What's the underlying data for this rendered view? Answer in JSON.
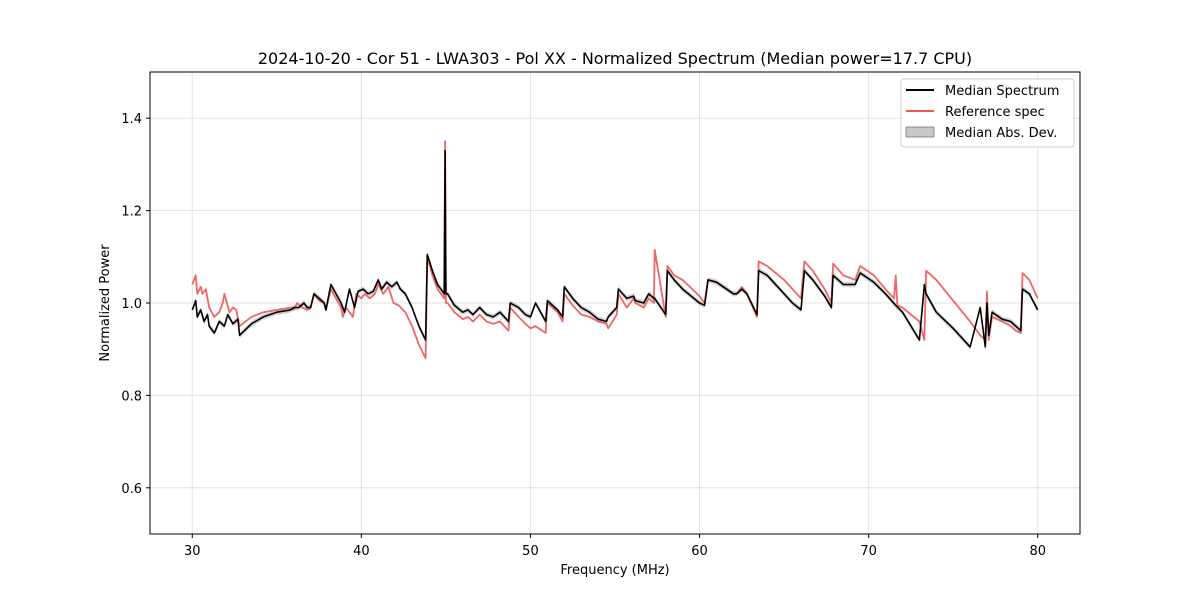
{
  "chart_data": {
    "type": "line",
    "title": "2024-10-20 - Cor 51 - LWA303 - Pol XX - Normalized Spectrum (Median power=17.7 CPU)",
    "xlabel": "Frequency (MHz)",
    "ylabel": "Normalized Power",
    "xlim": [
      27.5,
      82.5
    ],
    "ylim": [
      0.5,
      1.5
    ],
    "xticks": [
      30,
      40,
      50,
      60,
      70,
      80
    ],
    "yticks": [
      0.6,
      0.8,
      1.0,
      1.2,
      1.4
    ],
    "xtick_labels": [
      "30",
      "40",
      "50",
      "60",
      "70",
      "80"
    ],
    "ytick_labels": [
      "0.6",
      "0.8",
      "1.0",
      "1.2",
      "1.4"
    ],
    "grid": true,
    "legend_position": "top-right",
    "series": [
      {
        "name": "Reference spec",
        "color": "#ee5555",
        "x": [
          30.0,
          30.2,
          30.3,
          30.5,
          30.6,
          30.8,
          31.0,
          31.3,
          31.6,
          31.8,
          31.9,
          32.2,
          32.4,
          32.6,
          32.8,
          33.5,
          34.2,
          35.0,
          35.8,
          36.0,
          36.2,
          36.5,
          36.8,
          37.0,
          37.2,
          37.5,
          37.8,
          37.9,
          38.2,
          38.5,
          38.8,
          38.9,
          39.1,
          39.5,
          39.7,
          40.0,
          40.2,
          40.5,
          40.8,
          41.0,
          41.3,
          41.6,
          41.9,
          42.2,
          42.6,
          43.0,
          43.4,
          43.8,
          43.9,
          44.2,
          44.5,
          44.9,
          44.95,
          45.0,
          45.05,
          45.1,
          45.5,
          46.0,
          46.3,
          46.6,
          47.0,
          47.4,
          47.8,
          48.2,
          48.7,
          48.8,
          49.3,
          49.7,
          50.0,
          50.3,
          50.9,
          51.0,
          51.6,
          51.9,
          52.0,
          52.5,
          53.0,
          53.5,
          54.0,
          54.5,
          54.6,
          55.1,
          55.2,
          55.7,
          56.1,
          56.2,
          56.7,
          57.0,
          57.3,
          57.35,
          58.0,
          58.1,
          58.5,
          59.0,
          60.0,
          60.3,
          60.5,
          61.0,
          62.0,
          62.2,
          62.5,
          62.8,
          63.4,
          63.5,
          64.0,
          65.0,
          65.5,
          66.0,
          66.2,
          66.7,
          67.4,
          67.8,
          67.9,
          68.5,
          69.2,
          69.5,
          70.3,
          71.0,
          71.5,
          71.6,
          71.7,
          72.0,
          73.0,
          73.3,
          73.4,
          74.0,
          75.0,
          76.0,
          76.6,
          76.9,
          77.0,
          77.1,
          77.3,
          77.9,
          78.4,
          78.7,
          79.0,
          79.1,
          79.5,
          80.0
        ],
        "values": [
          1.04,
          1.06,
          1.02,
          1.035,
          1.02,
          1.03,
          0.99,
          0.97,
          0.98,
          1.0,
          1.02,
          0.98,
          0.99,
          0.985,
          0.95,
          0.97,
          0.98,
          0.985,
          0.99,
          0.985,
          1.0,
          0.99,
          0.985,
          0.99,
          1.02,
          1.005,
          1.0,
          0.985,
          1.03,
          1.01,
          0.99,
          0.97,
          0.99,
          0.97,
          1.02,
          1.01,
          1.02,
          1.01,
          1.02,
          1.04,
          1.02,
          1.035,
          1.0,
          0.995,
          0.98,
          0.95,
          0.91,
          0.88,
          1.1,
          1.06,
          1.03,
          1.01,
          1.35,
          1.0,
          1.0,
          1.0,
          0.98,
          0.965,
          0.97,
          0.96,
          0.975,
          0.96,
          0.955,
          0.96,
          0.94,
          0.99,
          0.97,
          0.955,
          0.945,
          0.95,
          0.935,
          1.0,
          0.98,
          0.96,
          1.02,
          0.995,
          0.975,
          0.97,
          0.96,
          0.955,
          0.945,
          0.975,
          1.02,
          0.99,
          1.01,
          1.0,
          0.99,
          1.01,
          1.0,
          1.115,
          0.97,
          1.08,
          1.06,
          1.05,
          1.015,
          1.0,
          1.05,
          1.045,
          1.02,
          1.02,
          1.035,
          1.02,
          0.97,
          1.09,
          1.08,
          1.05,
          1.03,
          1.01,
          1.09,
          1.07,
          1.03,
          1.0,
          1.085,
          1.06,
          1.05,
          1.08,
          1.06,
          1.03,
          1.01,
          1.06,
          0.995,
          0.99,
          0.96,
          0.92,
          1.07,
          1.05,
          1.005,
          0.96,
          0.93,
          0.92,
          1.025,
          0.92,
          0.97,
          0.96,
          0.95,
          0.94,
          0.935,
          1.065,
          1.05,
          1.01
        ]
      },
      {
        "name": "Median Spectrum",
        "color": "#000000",
        "x": [
          30.0,
          30.2,
          30.3,
          30.5,
          30.7,
          30.9,
          31.0,
          31.3,
          31.6,
          31.9,
          32.1,
          32.4,
          32.7,
          32.8,
          33.5,
          34.2,
          35.0,
          35.8,
          36.0,
          36.3,
          36.6,
          36.8,
          37.0,
          37.2,
          37.5,
          37.8,
          37.9,
          38.2,
          38.5,
          38.8,
          39.0,
          39.3,
          39.6,
          39.8,
          40.1,
          40.4,
          40.7,
          41.0,
          41.2,
          41.5,
          41.8,
          42.1,
          42.3,
          42.6,
          43.0,
          43.4,
          43.8,
          43.9,
          44.2,
          44.5,
          44.9,
          44.95,
          45.0,
          45.05,
          45.1,
          45.5,
          46.0,
          46.3,
          46.6,
          47.0,
          47.4,
          47.8,
          48.2,
          48.7,
          48.8,
          49.3,
          49.7,
          50.0,
          50.3,
          50.9,
          51.0,
          51.6,
          51.9,
          52.0,
          52.5,
          53.0,
          53.5,
          54.0,
          54.5,
          54.6,
          55.1,
          55.2,
          55.7,
          56.1,
          56.2,
          56.7,
          57.0,
          57.3,
          57.35,
          58.0,
          58.1,
          58.5,
          59.0,
          60.0,
          60.3,
          60.5,
          61.0,
          62.0,
          62.2,
          62.5,
          62.8,
          63.4,
          63.5,
          64.0,
          65.0,
          65.5,
          66.0,
          66.2,
          66.7,
          67.4,
          67.8,
          67.9,
          68.5,
          69.2,
          69.5,
          70.3,
          71.0,
          71.6,
          72.0,
          73.0,
          73.3,
          73.4,
          74.0,
          75.0,
          76.0,
          76.6,
          76.9,
          77.0,
          77.1,
          77.3,
          77.9,
          78.4,
          78.7,
          79.0,
          79.1,
          79.5,
          80.0
        ],
        "values": [
          0.985,
          1.005,
          0.97,
          0.985,
          0.96,
          0.975,
          0.95,
          0.935,
          0.96,
          0.95,
          0.975,
          0.955,
          0.965,
          0.93,
          0.955,
          0.97,
          0.98,
          0.985,
          0.99,
          0.99,
          1.0,
          0.99,
          0.99,
          1.02,
          1.01,
          1.0,
          0.985,
          1.04,
          1.02,
          1.0,
          0.98,
          1.03,
          0.99,
          1.025,
          1.03,
          1.02,
          1.025,
          1.05,
          1.03,
          1.045,
          1.035,
          1.045,
          1.03,
          1.02,
          0.99,
          0.95,
          0.92,
          1.105,
          1.07,
          1.04,
          1.02,
          1.33,
          1.02,
          1.02,
          1.02,
          0.995,
          0.98,
          0.985,
          0.975,
          0.99,
          0.975,
          0.97,
          0.98,
          0.96,
          1.0,
          0.99,
          0.975,
          0.97,
          1.0,
          0.96,
          1.005,
          0.985,
          0.97,
          1.035,
          1.01,
          0.99,
          0.98,
          0.965,
          0.96,
          0.97,
          0.99,
          1.03,
          1.01,
          1.015,
          1.005,
          1.0,
          1.02,
          1.01,
          1.01,
          0.975,
          1.07,
          1.05,
          1.03,
          1.0,
          0.995,
          1.05,
          1.045,
          1.02,
          1.02,
          1.03,
          1.02,
          0.975,
          1.07,
          1.06,
          1.02,
          1.0,
          0.985,
          1.07,
          1.05,
          1.015,
          0.99,
          1.06,
          1.04,
          1.04,
          1.065,
          1.045,
          1.02,
          0.995,
          0.98,
          0.92,
          1.04,
          1.02,
          0.98,
          0.945,
          0.905,
          0.99,
          0.905,
          1.0,
          0.93,
          0.98,
          0.965,
          0.96,
          0.95,
          0.94,
          1.03,
          1.02,
          0.985
        ]
      }
    ],
    "band": {
      "name": "Median Abs. Dev.",
      "color": "#c8c8c8",
      "half_width": 0.006
    }
  }
}
